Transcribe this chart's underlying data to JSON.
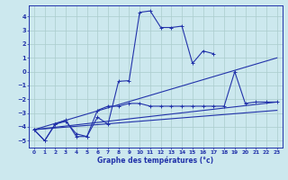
{
  "background_color": "#cce8ee",
  "grid_color": "#aacccc",
  "line_color": "#2233aa",
  "marker_color": "#2233aa",
  "xlabel": "Graphe des températures (°c)",
  "xlim": [
    -0.5,
    23.5
  ],
  "ylim": [
    -5.5,
    4.8
  ],
  "yticks": [
    -5,
    -4,
    -3,
    -2,
    -1,
    0,
    1,
    2,
    3,
    4
  ],
  "xticks": [
    0,
    1,
    2,
    3,
    4,
    5,
    6,
    7,
    8,
    9,
    10,
    11,
    12,
    13,
    14,
    15,
    16,
    17,
    18,
    19,
    20,
    21,
    22,
    23
  ],
  "series": [
    {
      "x": [
        0,
        1,
        2,
        3,
        4,
        5,
        6,
        7,
        8,
        9,
        10,
        11,
        12,
        13,
        14,
        15,
        16,
        17,
        18,
        19,
        20,
        21,
        22,
        23
      ],
      "y": [
        -4.2,
        -5.0,
        -3.8,
        -3.6,
        -4.5,
        -4.7,
        -3.3,
        -3.8,
        -0.7,
        -0.65,
        4.3,
        4.4,
        3.2,
        3.2,
        3.3,
        0.6,
        1.5,
        1.3,
        null,
        null,
        null,
        null,
        null,
        null
      ]
    },
    {
      "x": [
        0,
        23
      ],
      "y": [
        -4.2,
        1.0
      ]
    },
    {
      "x": [
        0,
        23
      ],
      "y": [
        -4.2,
        -2.2
      ]
    },
    {
      "x": [
        0,
        23
      ],
      "y": [
        -4.2,
        -2.8
      ]
    },
    {
      "x": [
        0,
        1,
        2,
        3,
        4,
        5,
        6,
        7,
        8,
        9,
        10,
        11,
        12,
        13,
        14,
        15,
        16,
        17,
        18,
        19,
        20,
        21,
        22,
        23
      ],
      "y": [
        -4.2,
        -5.0,
        -3.8,
        -3.5,
        -4.7,
        -4.7,
        -2.8,
        -2.5,
        -2.5,
        -2.3,
        -2.3,
        -2.5,
        -2.5,
        -2.5,
        -2.5,
        -2.5,
        -2.5,
        -2.5,
        -2.5,
        0.0,
        -2.3,
        -2.2,
        -2.2,
        -2.2
      ]
    }
  ]
}
